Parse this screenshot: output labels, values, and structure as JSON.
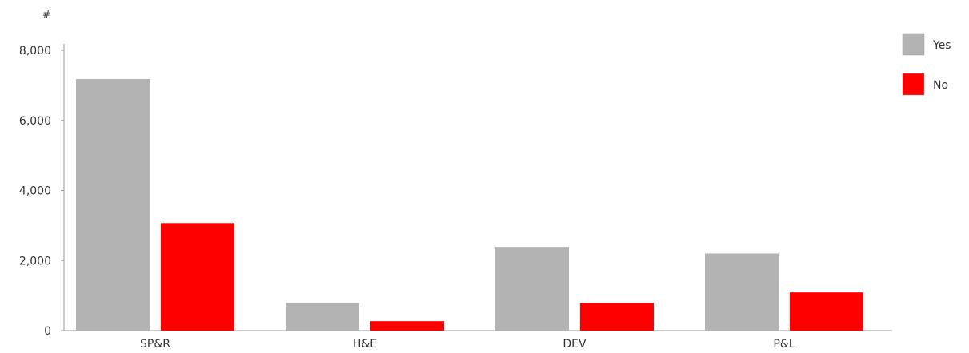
{
  "chart_data": {
    "type": "bar",
    "ylabel": "#",
    "categories": [
      "SP&R",
      "H&E",
      "DEV",
      "P&L"
    ],
    "series": [
      {
        "name": "Yes",
        "color": "#b3b3b3",
        "values": [
          7180,
          790,
          2390,
          2200
        ]
      },
      {
        "name": "No",
        "color": "#ff0000",
        "values": [
          3070,
          270,
          790,
          1090
        ]
      }
    ],
    "ylim": [
      0,
      8000
    ],
    "yticks": [
      0,
      2000,
      4000,
      6000,
      8000
    ],
    "ytick_labels": [
      "0",
      "2,000",
      "4,000",
      "6,000",
      "8,000"
    ],
    "grid": false,
    "legend": "top-right"
  }
}
